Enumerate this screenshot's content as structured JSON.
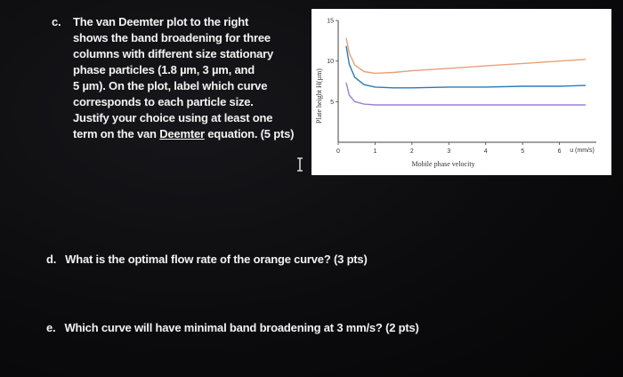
{
  "question_c": {
    "letter": "c.",
    "lines": [
      "The van Deemter plot to the right",
      "shows the band broadening for three",
      "columns with different size stationary",
      "phase particles (1.8 µm, 3 µm, and",
      "5 µm). On the plot, label which curve",
      "corresponds to each particle size.",
      "Justify your choice using at least one"
    ],
    "last_line_pre": "term on the van ",
    "last_line_underlined": "Deemter",
    "last_line_post": " equation. (5 pts)"
  },
  "question_d": {
    "letter": "d.",
    "text": "What is the optimal flow rate of the orange curve? (3 pts)"
  },
  "question_e": {
    "letter": "e.",
    "text": "Which curve will have minimal band broadening at 3 mm/s? (2 pts)"
  },
  "chart_data": {
    "type": "line",
    "xlabel": "Mobile phase velocity",
    "x_unit_label": "u (mm/s)",
    "ylabel": "Plate height H(µm)",
    "xlim": [
      0,
      7
    ],
    "ylim": [
      0,
      15
    ],
    "x_ticks": [
      0,
      1,
      2,
      3,
      4,
      5,
      6
    ],
    "y_ticks": [
      5,
      10,
      15
    ],
    "grid": false,
    "series": [
      {
        "color": "#e8a07a",
        "x": [
          0.22,
          0.3,
          0.45,
          0.7,
          1.0,
          1.5,
          2.0,
          3.0,
          4.0,
          5.0,
          6.0,
          6.7
        ],
        "y": [
          12.8,
          11.0,
          9.5,
          8.7,
          8.5,
          8.6,
          8.8,
          9.1,
          9.4,
          9.7,
          10.0,
          10.2
        ]
      },
      {
        "color": "#2a7ab8",
        "x": [
          0.22,
          0.3,
          0.45,
          0.7,
          1.0,
          1.5,
          2.0,
          3.0,
          4.0,
          5.0,
          6.0,
          6.7
        ],
        "y": [
          11.8,
          9.6,
          8.0,
          7.1,
          6.8,
          6.7,
          6.7,
          6.8,
          6.8,
          6.9,
          6.9,
          7.0
        ]
      },
      {
        "color": "#9a7fd0",
        "x": [
          0.22,
          0.3,
          0.45,
          0.7,
          1.0,
          1.5,
          2.0,
          3.0,
          4.0,
          5.0,
          6.0,
          6.7
        ],
        "y": [
          7.3,
          5.8,
          5.0,
          4.7,
          4.6,
          4.6,
          4.6,
          4.6,
          4.6,
          4.6,
          4.6,
          4.6
        ]
      }
    ]
  }
}
